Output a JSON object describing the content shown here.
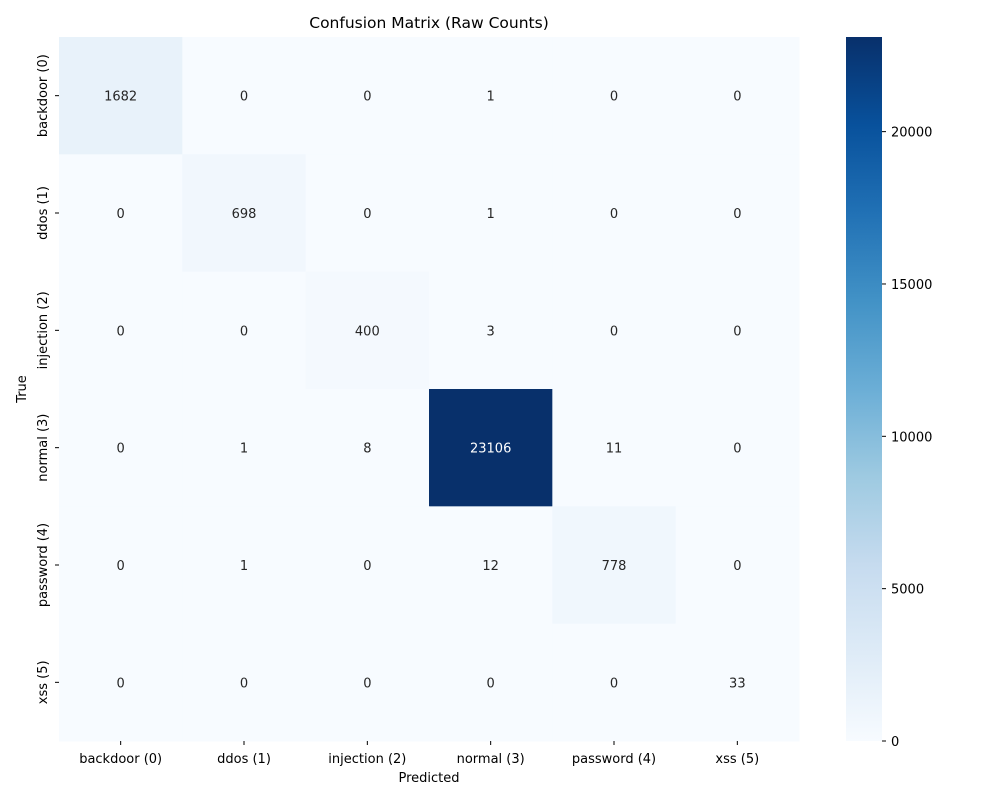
{
  "chart_data": {
    "type": "heatmap",
    "title": "Confusion Matrix (Raw Counts)",
    "xlabel": "Predicted",
    "ylabel": "True",
    "x_categories": [
      "backdoor (0)",
      "ddos (1)",
      "injection (2)",
      "normal (3)",
      "password (4)",
      "xss (5)"
    ],
    "y_categories": [
      "backdoor (0)",
      "ddos (1)",
      "injection (2)",
      "normal (3)",
      "password (4)",
      "xss (5)"
    ],
    "values": [
      [
        1682,
        0,
        0,
        1,
        0,
        0
      ],
      [
        0,
        698,
        0,
        1,
        0,
        0
      ],
      [
        0,
        0,
        400,
        3,
        0,
        0
      ],
      [
        0,
        1,
        8,
        23106,
        11,
        0
      ],
      [
        0,
        1,
        0,
        12,
        778,
        0
      ],
      [
        0,
        0,
        0,
        0,
        0,
        33
      ]
    ],
    "colormap": "Blues",
    "colorbar": {
      "min": 0,
      "max": 23106,
      "ticks": [
        0,
        5000,
        10000,
        15000,
        20000
      ]
    }
  }
}
